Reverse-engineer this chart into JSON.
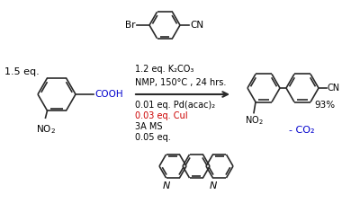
{
  "bg_color": "#ffffff",
  "text_color": "#000000",
  "blue_color": "#0000cd",
  "red_color": "#cc0000",
  "bond_color": "#2a2a2a",
  "fig_width": 4.0,
  "fig_height": 2.36,
  "dpi": 100,
  "eq_label": "1.5 eq.",
  "yield_label": "93%",
  "co2_label": "- CO₂",
  "cond1": "1.2 eq. K₂CO₃",
  "cond2": "NMP, 150°C , 24 hrs.",
  "cond3": "0.01 eq. Pd(acac)₂",
  "cond4": "0.03 eq. CuI",
  "cond5": "3A MS",
  "cond6": "0.05 eq."
}
